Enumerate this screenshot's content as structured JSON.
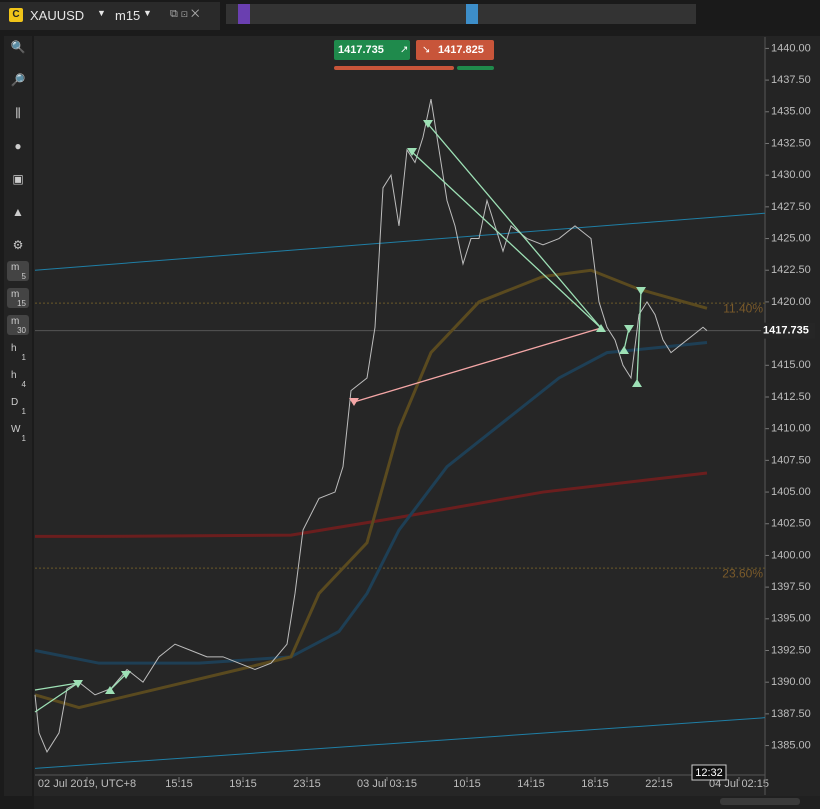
{
  "ui": {
    "symbol": "XAUUSD",
    "timeframe": "m15",
    "bid": "1417.735",
    "ask": "1417.825",
    "clock": "12:32",
    "toolbar": [
      {
        "main": "m",
        "sub": "5"
      },
      {
        "main": "m",
        "sub": "15"
      },
      {
        "main": "m",
        "sub": "30"
      },
      {
        "main": "h",
        "sub": "1"
      },
      {
        "main": "h",
        "sub": "4"
      },
      {
        "main": "D",
        "sub": "1"
      },
      {
        "main": "W",
        "sub": "1"
      }
    ]
  },
  "chart_data": {
    "type": "line",
    "xlim": [
      0,
      182.5
    ],
    "ylim": [
      1381.1,
      1440.9
    ],
    "xticks": [
      {
        "value": 13,
        "label": "02 Jul 2019, UTC+8"
      },
      {
        "value": 36,
        "label": "15:15"
      },
      {
        "value": 52,
        "label": "19:15"
      },
      {
        "value": 68,
        "label": "23:15"
      },
      {
        "value": 88,
        "label": "03 Jul 03:15"
      },
      {
        "value": 108,
        "label": "10:15"
      },
      {
        "value": 124,
        "label": "14:15"
      },
      {
        "value": 140,
        "label": "18:15"
      },
      {
        "value": 156,
        "label": "22:15"
      },
      {
        "value": 176,
        "label": "04 Jul 02:15"
      }
    ],
    "yticks": [
      {
        "value": 1385,
        "label": "1385.00"
      },
      {
        "value": 1387.5,
        "label": "1387.50"
      },
      {
        "value": 1390,
        "label": "1390.00"
      },
      {
        "value": 1392.5,
        "label": "1392.50"
      },
      {
        "value": 1395,
        "label": "1395.00"
      },
      {
        "value": 1397.5,
        "label": "1397.50"
      },
      {
        "value": 1400,
        "label": "1400.00"
      },
      {
        "value": 1402.5,
        "label": "1402.50"
      },
      {
        "value": 1405,
        "label": "1405.00"
      },
      {
        "value": 1407.5,
        "label": "1407.50"
      },
      {
        "value": 1410,
        "label": "1410.00"
      },
      {
        "value": 1412.5,
        "label": "1412.50"
      },
      {
        "value": 1415,
        "label": "1415.00"
      },
      {
        "value": 1417.5,
        "label": "1417.50"
      },
      {
        "value": 1420,
        "label": "1420.00"
      },
      {
        "value": 1422.5,
        "label": "1422.50"
      },
      {
        "value": 1425,
        "label": "1425.00"
      },
      {
        "value": 1427.5,
        "label": "1427.50"
      },
      {
        "value": 1430,
        "label": "1430.00"
      },
      {
        "value": 1432.5,
        "label": "1432.50"
      },
      {
        "value": 1435,
        "label": "1435.00"
      },
      {
        "value": 1437.5,
        "label": "1437.50"
      },
      {
        "value": 1440,
        "label": "1440.00"
      }
    ],
    "last_price": 1417.735,
    "levels": [
      {
        "price": 1419.9,
        "label": "11.40%"
      },
      {
        "price": 1399.0,
        "label": "23.60%"
      }
    ],
    "series": [
      {
        "color": "#1f7fa6",
        "x": [
          0,
          182.5
        ],
        "values": [
          1422.5,
          1427.0
        ]
      },
      {
        "color": "#1f7fa6",
        "x": [
          0,
          182.5
        ],
        "values": [
          1383.2,
          1387.2
        ]
      },
      {
        "color": "#6b1e1e",
        "x": [
          0,
          16,
          64,
          91,
          127,
          168
        ],
        "values": [
          1401.5,
          1401.5,
          1401.6,
          1403,
          1405,
          1406.5
        ]
      },
      {
        "color": "#1e3f55",
        "x": [
          0,
          16,
          41,
          64,
          76,
          83,
          91,
          103,
          119,
          131,
          143,
          159,
          168
        ],
        "values": [
          1392.5,
          1391.5,
          1391.5,
          1392,
          1394,
          1397,
          1402,
          1407,
          1411,
          1414,
          1416,
          1416.5,
          1416.8
        ]
      },
      {
        "color": "#5a4a1f",
        "x": [
          0,
          11,
          51,
          64,
          71,
          83,
          91,
          99,
          111,
          127,
          139,
          151,
          168
        ],
        "values": [
          1389,
          1388,
          1391,
          1392,
          1397,
          1401,
          1410,
          1416,
          1420,
          1422,
          1422.5,
          1421,
          1419.5
        ]
      },
      {
        "color": "#bdbdbd",
        "x": [
          0,
          1,
          3,
          6,
          8,
          11,
          15,
          19,
          23,
          27,
          31,
          35,
          39,
          43,
          47,
          51,
          55,
          59,
          63,
          65,
          67,
          71,
          75,
          77,
          79,
          83,
          85,
          87,
          89,
          91,
          93,
          95,
          97,
          99,
          101,
          103,
          105,
          107,
          109,
          111,
          113,
          115,
          117,
          119,
          123,
          127,
          131,
          135,
          139,
          141,
          143,
          145,
          147,
          149,
          151,
          153,
          155,
          157,
          159,
          161,
          163,
          165,
          167,
          168
        ],
        "values": [
          1389,
          1386,
          1384.5,
          1386,
          1389.5,
          1390,
          1389,
          1389.5,
          1391,
          1390,
          1392,
          1393,
          1392.5,
          1392,
          1392,
          1391.5,
          1391,
          1391.5,
          1393,
          1397,
          1402,
          1404.5,
          1405,
          1407,
          1413,
          1414,
          1418,
          1429,
          1430,
          1426,
          1432,
          1431,
          1433,
          1436,
          1432,
          1428,
          1426,
          1423,
          1425,
          1425,
          1428,
          1426,
          1424,
          1426,
          1425,
          1424.5,
          1425,
          1426,
          1425,
          1420,
          1418,
          1417,
          1415,
          1414,
          1419,
          1420,
          1419,
          1417,
          1416,
          1416.5,
          1417,
          1417.5,
          1418,
          1417.735
        ]
      }
    ]
  }
}
